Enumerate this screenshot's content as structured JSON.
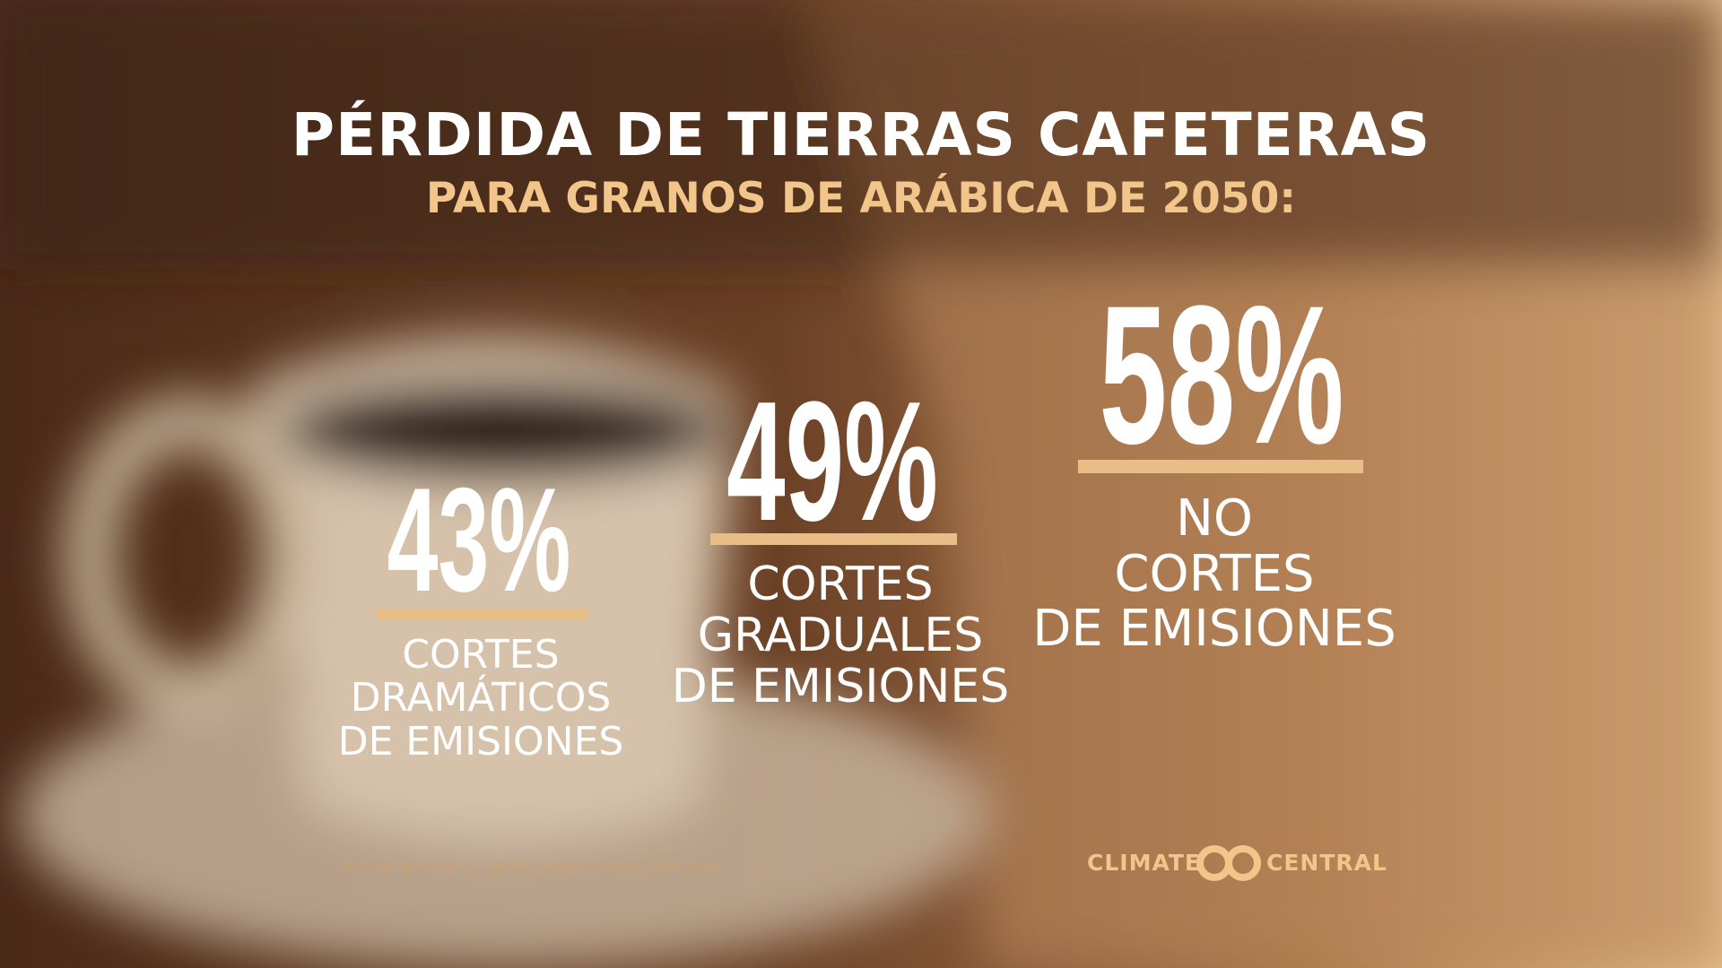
{
  "header": {
    "title": "PÉRDIDA DE TIERRAS CAFETERAS",
    "subtitle": "PARA GRANOS DE ARÁBICA DE 2050:"
  },
  "stats": [
    {
      "value": "43%",
      "label": [
        "CORTES",
        "DRAMÁTICOS",
        "DE EMISIONES"
      ]
    },
    {
      "value": "49%",
      "label": [
        "CORTES",
        "GRADUALES",
        "DE EMISIONES"
      ]
    },
    {
      "value": "58%",
      "label": [
        "NO",
        "CORTES",
        "DE EMISIONES"
      ]
    }
  ],
  "source": "Fuente: Bunn et al. (2015); línea de base 1950-2000",
  "logo": {
    "left": "CLIMATE",
    "right": "CENTRAL"
  }
}
